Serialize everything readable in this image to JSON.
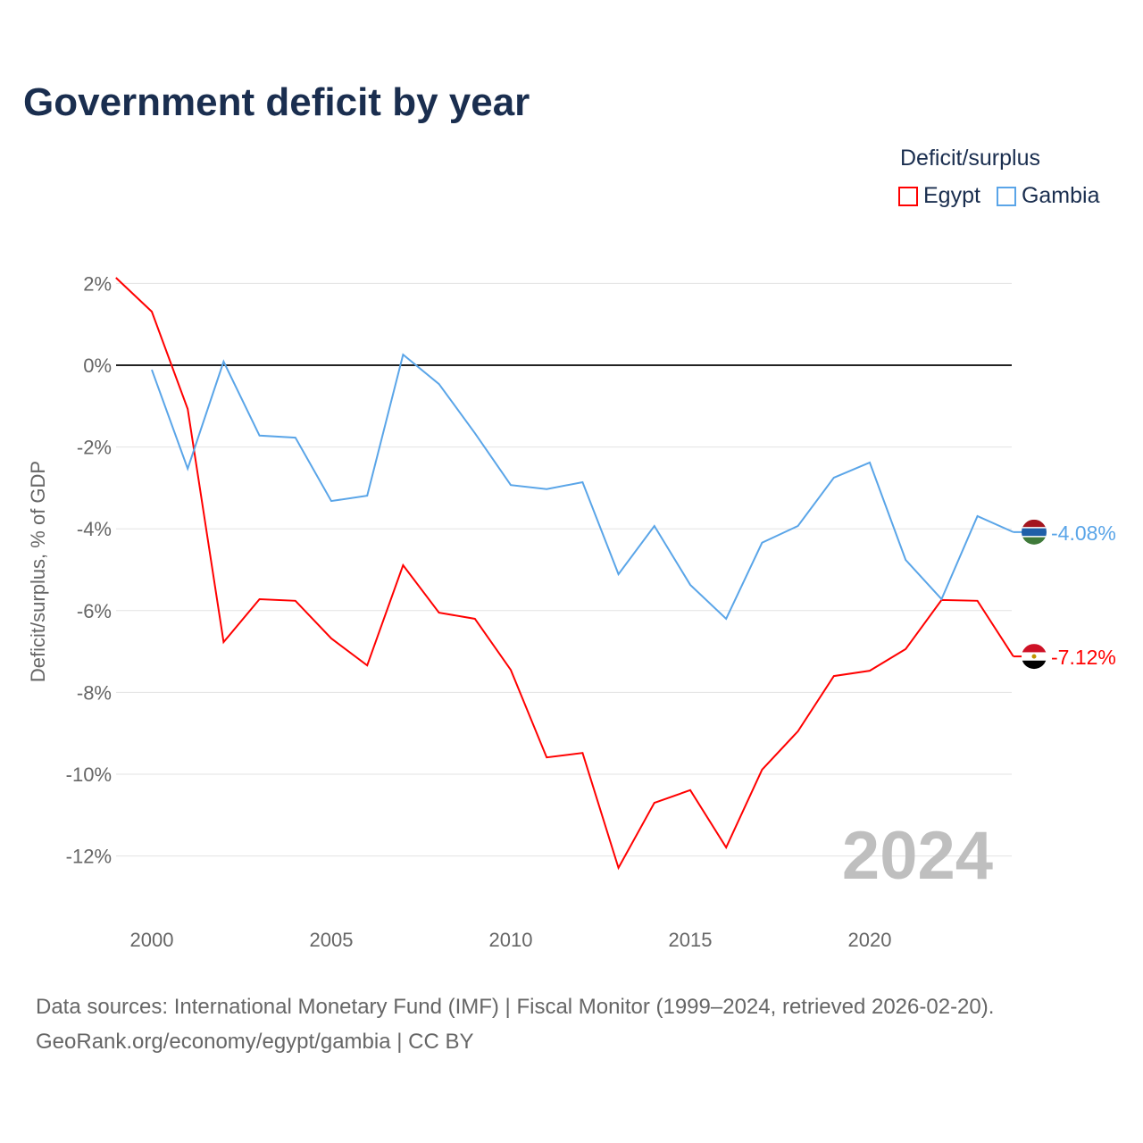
{
  "chart_data": {
    "type": "line",
    "title": "Government deficit by year",
    "ylabel": "Deficit/surplus, % of GDP",
    "xlabel": "",
    "ylim": [
      -13,
      2.3
    ],
    "xlim": [
      1999,
      2024
    ],
    "yticks": [
      2,
      0,
      -2,
      -4,
      -6,
      -8,
      -10,
      -12
    ],
    "ytick_labels": [
      "2%",
      "0%",
      "-2%",
      "-4%",
      "-6%",
      "-8%",
      "-10%",
      "-12%"
    ],
    "xticks": [
      2000,
      2005,
      2010,
      2015,
      2020
    ],
    "xtick_labels": [
      "2000",
      "2005",
      "2010",
      "2015",
      "2020"
    ],
    "grid": true,
    "legend_title": "Deficit/surplus",
    "legend_placement": "top-right",
    "year_annotation": "2024",
    "series": [
      {
        "name": "Egypt",
        "color": "#ff0000",
        "end_label": "-7.12%",
        "x": [
          1999,
          2000,
          2001,
          2002,
          2003,
          2004,
          2005,
          2006,
          2007,
          2008,
          2009,
          2010,
          2011,
          2012,
          2013,
          2014,
          2015,
          2016,
          2017,
          2018,
          2019,
          2020,
          2021,
          2022,
          2023,
          2024
        ],
        "values": [
          2.14,
          1.31,
          -1.07,
          -6.77,
          -5.72,
          -5.76,
          -6.68,
          -7.34,
          -4.89,
          -6.05,
          -6.2,
          -7.45,
          -9.59,
          -9.48,
          -12.29,
          -10.7,
          -10.39,
          -11.79,
          -9.89,
          -8.95,
          -7.6,
          -7.47,
          -6.94,
          -5.74,
          -5.76,
          -7.12
        ]
      },
      {
        "name": "Gambia",
        "color": "#5aa5e8",
        "end_label": "-4.08%",
        "x": [
          2000,
          2001,
          2002,
          2003,
          2004,
          2005,
          2006,
          2007,
          2008,
          2009,
          2010,
          2011,
          2012,
          2013,
          2014,
          2015,
          2016,
          2017,
          2018,
          2019,
          2020,
          2021,
          2022,
          2023,
          2024
        ],
        "values": [
          -0.11,
          -2.53,
          0.09,
          -1.72,
          -1.77,
          -3.32,
          -3.19,
          0.26,
          -0.46,
          -1.66,
          -2.93,
          -3.03,
          -2.86,
          -5.11,
          -3.93,
          -5.37,
          -6.2,
          -4.34,
          -3.93,
          -2.75,
          -2.38,
          -4.76,
          -5.72,
          -3.69,
          -4.08
        ]
      }
    ]
  },
  "source_line1": "Data sources: International Monetary Fund (IMF) | Fiscal Monitor (1999–2024, retrieved 2026-02-20).",
  "source_line2": "GeoRank.org/economy/egypt/gambia | CC BY"
}
